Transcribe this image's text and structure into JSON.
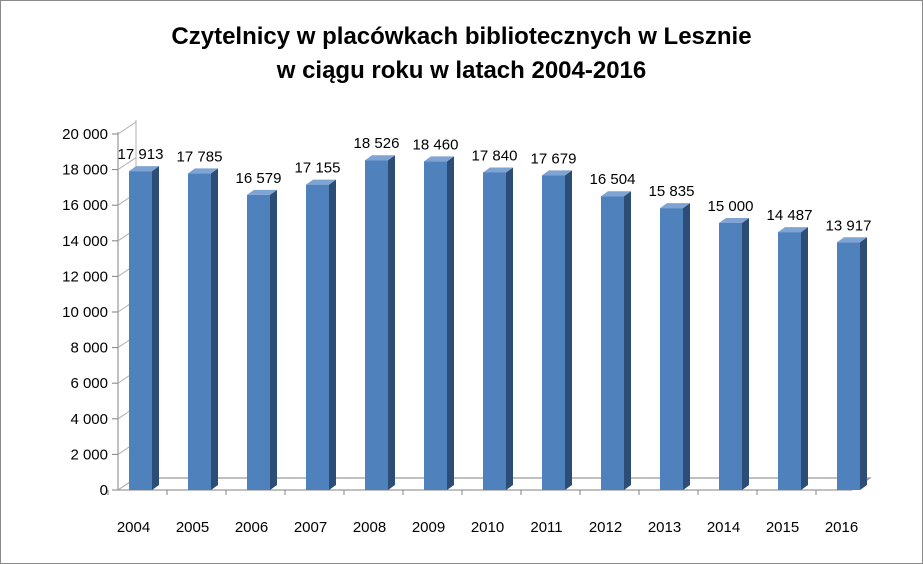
{
  "chart_data": {
    "type": "bar",
    "title_line1": "Czytelnicy w placówkach bibliotecznych w Lesznie",
    "title_line2": "w ciągu roku w latach 2004-2016",
    "xlabel": "",
    "ylabel": "",
    "categories": [
      "2004",
      "2005",
      "2006",
      "2007",
      "2008",
      "2009",
      "2010",
      "2011",
      "2012",
      "2013",
      "2014",
      "2015",
      "2016"
    ],
    "values": [
      17913,
      17785,
      16579,
      17155,
      18526,
      18460,
      17840,
      17679,
      16504,
      15835,
      15000,
      14487,
      13917
    ],
    "value_labels": [
      "17 913",
      "17 785",
      "16 579",
      "17 155",
      "18 526",
      "18 460",
      "17 840",
      "17 679",
      "16 504",
      "15 835",
      "15 000",
      "14 487",
      "13 917"
    ],
    "ylim": [
      0,
      20000
    ],
    "yticks": [
      0,
      2000,
      4000,
      6000,
      8000,
      10000,
      12000,
      14000,
      16000,
      18000,
      20000
    ],
    "ytick_labels": [
      "0",
      "2 000",
      "4 000",
      "6 000",
      "8 000",
      "10 000",
      "12 000",
      "14 000",
      "16 000",
      "18 000",
      "20 000"
    ],
    "grid": false,
    "legend": "none",
    "bar_color": "#4f81bd",
    "bar_side_color": "#2c4d75",
    "bar_top_color": "#7fa4d3"
  }
}
